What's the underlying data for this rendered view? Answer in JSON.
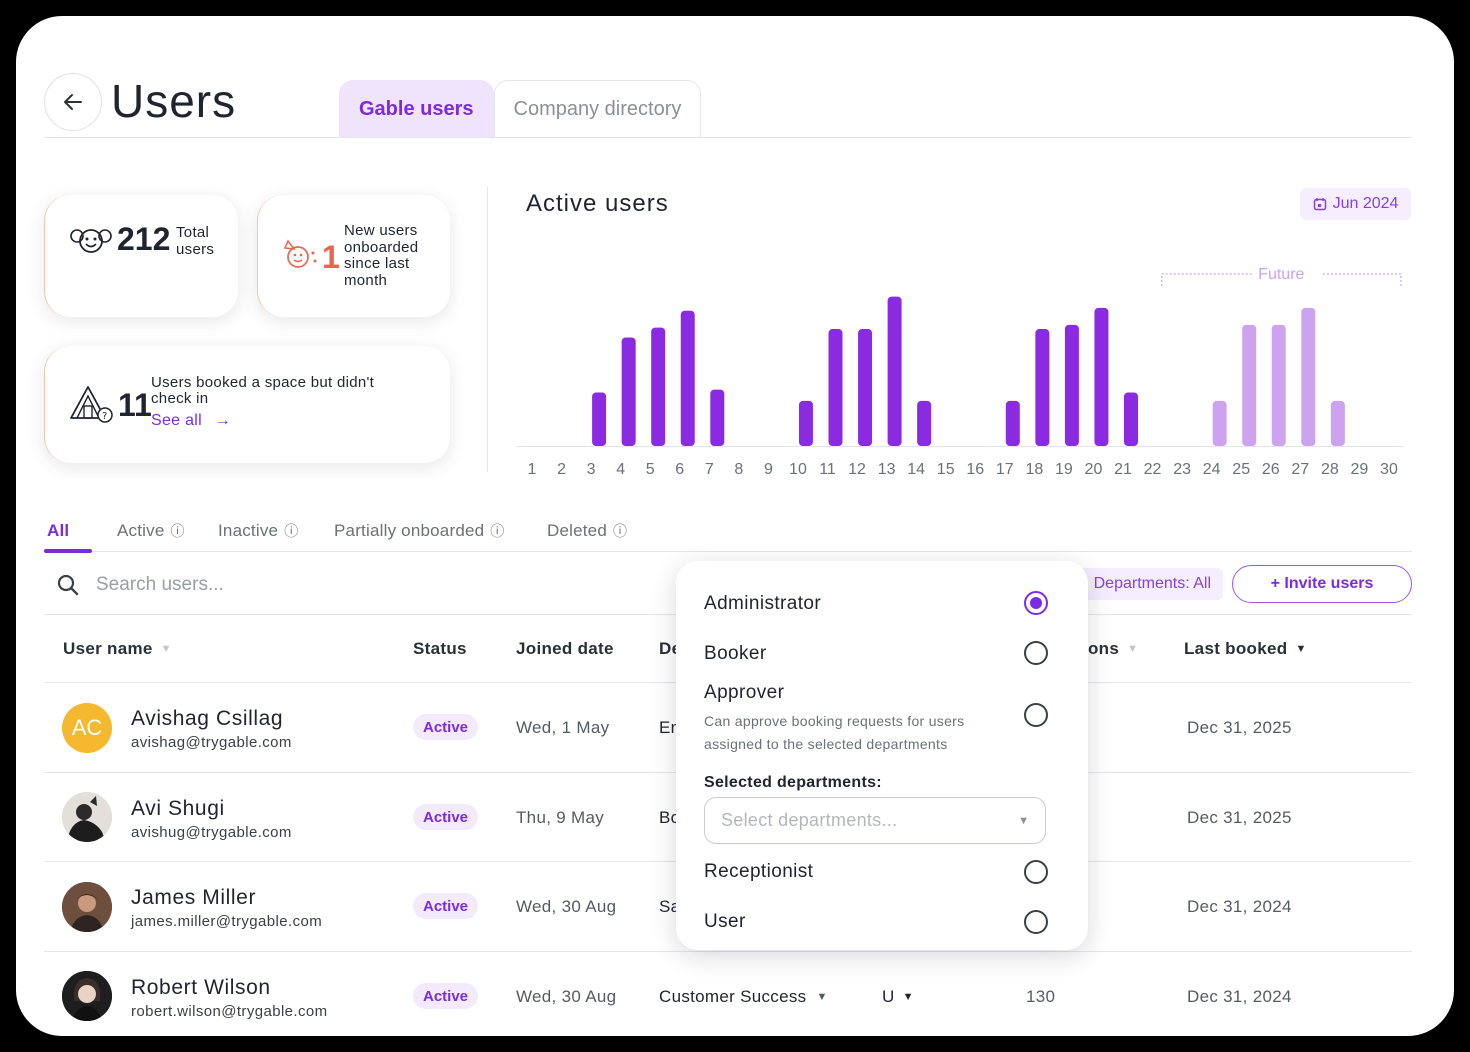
{
  "header": {
    "title": "Users",
    "tabs": [
      {
        "label": "Gable users",
        "active": true
      },
      {
        "label": "Company directory",
        "active": false
      }
    ]
  },
  "stats": {
    "total": {
      "value": "212",
      "label_line1": "Total",
      "label_line2": "users"
    },
    "onboarded": {
      "value": "1",
      "label_lines": [
        "New users",
        "onboarded",
        "since last",
        "month"
      ]
    },
    "no_checkin": {
      "value": "11",
      "label_line1": "Users booked a space but didn't",
      "label_line2": "check in",
      "link": "See all"
    }
  },
  "chart": {
    "month": "Jun 2024",
    "future_label": "Future"
  },
  "chart_data": {
    "type": "bar",
    "title": "Active users",
    "categories": [
      "1",
      "2",
      "3",
      "4",
      "5",
      "6",
      "7",
      "8",
      "9",
      "10",
      "11",
      "12",
      "13",
      "14",
      "15",
      "16",
      "17",
      "18",
      "19",
      "20",
      "21",
      "22",
      "23",
      "24",
      "25",
      "26",
      "27",
      "28",
      "29",
      "30"
    ],
    "values": [
      0,
      0,
      38,
      77,
      84,
      96,
      40,
      0,
      0,
      32,
      83,
      83,
      106,
      32,
      0,
      0,
      32,
      83,
      86,
      98,
      38,
      0,
      0,
      32,
      86,
      86,
      98,
      32,
      0,
      0
    ],
    "future_from": 24,
    "ylim": [
      0,
      110
    ],
    "colors": {
      "past": "#8a2be2",
      "future": "#cda3f0"
    },
    "grid": false
  },
  "filters": {
    "tabs": [
      {
        "label": "All",
        "active": true,
        "info": false
      },
      {
        "label": "Active",
        "active": false,
        "info": true
      },
      {
        "label": "Inactive",
        "active": false,
        "info": true
      },
      {
        "label": "Partially onboarded",
        "active": false,
        "info": true
      },
      {
        "label": "Deleted",
        "active": false,
        "info": true
      }
    ],
    "search_placeholder": "Search users...",
    "departments": "Departments: All",
    "invite": "+ Invite users"
  },
  "table": {
    "columns": {
      "name": "User name",
      "status": "Status",
      "joined": "Joined date",
      "dept": "De",
      "permissions": "ons",
      "last_booked": "Last booked"
    },
    "rows": [
      {
        "initials": "AC",
        "name": "Avishag Csillag",
        "email": "avishag@trygable.com",
        "status": "Active",
        "joined": "Wed, 1 May",
        "dept": "En",
        "role": "",
        "count": "",
        "last_booked": "Dec 31, 2025"
      },
      {
        "initials": "",
        "name": "Avi Shugi",
        "email": "avishug@trygable.com",
        "status": "Active",
        "joined": "Thu, 9 May",
        "dept": "Bo",
        "role": "",
        "count": "",
        "last_booked": "Dec 31, 2025"
      },
      {
        "initials": "",
        "name": "James Miller",
        "email": "james.miller@trygable.com",
        "status": "Active",
        "joined": "Wed, 30 Aug",
        "dept": "Sa",
        "role": "",
        "count": "",
        "last_booked": "Dec 31, 2024"
      },
      {
        "initials": "",
        "name": "Robert Wilson",
        "email": "robert.wilson@trygable.com",
        "status": "Active",
        "joined": "Wed, 30 Aug",
        "dept": "Customer Success",
        "role": "U",
        "count": "130",
        "last_booked": "Dec 31, 2024"
      }
    ]
  },
  "popover": {
    "roles": [
      {
        "label": "Administrator",
        "checked": true
      },
      {
        "label": "Booker",
        "checked": false
      },
      {
        "label": "Approver",
        "checked": false,
        "description": "Can approve booking requests for users assigned to the selected departments"
      },
      {
        "label": "Receptionist",
        "checked": false
      },
      {
        "label": "User",
        "checked": false
      }
    ],
    "selected_departments_label": "Selected departments:",
    "select_placeholder": "Select departments..."
  },
  "colors": {
    "accent": "#7c2ce0",
    "accent_light": "#efe4fc",
    "avatar_ac": "#f5b82e"
  }
}
